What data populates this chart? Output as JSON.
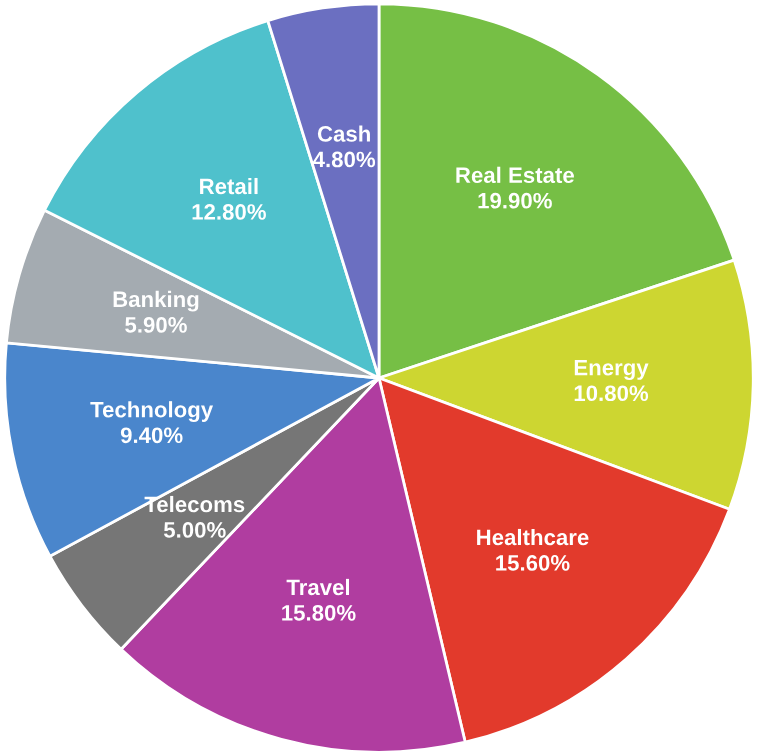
{
  "chart_data": {
    "type": "pie",
    "categories": [
      "Real Estate",
      "Energy",
      "Healthcare",
      "Travel",
      "Telecoms",
      "Technology",
      "Banking",
      "Retail",
      "Cash"
    ],
    "values": [
      19.9,
      10.8,
      15.6,
      15.8,
      5.0,
      9.4,
      5.9,
      12.8,
      4.8
    ],
    "value_labels": [
      "19.90%",
      "10.80%",
      "15.60%",
      "15.80%",
      "5.00%",
      "9.40%",
      "5.90%",
      "12.80%",
      "4.80%"
    ],
    "colors": [
      "#76bf45",
      "#cdd631",
      "#e23a2c",
      "#b03da0",
      "#767676",
      "#4a86cc",
      "#a4abb1",
      "#4fc1cc",
      "#6b6fc1"
    ]
  }
}
